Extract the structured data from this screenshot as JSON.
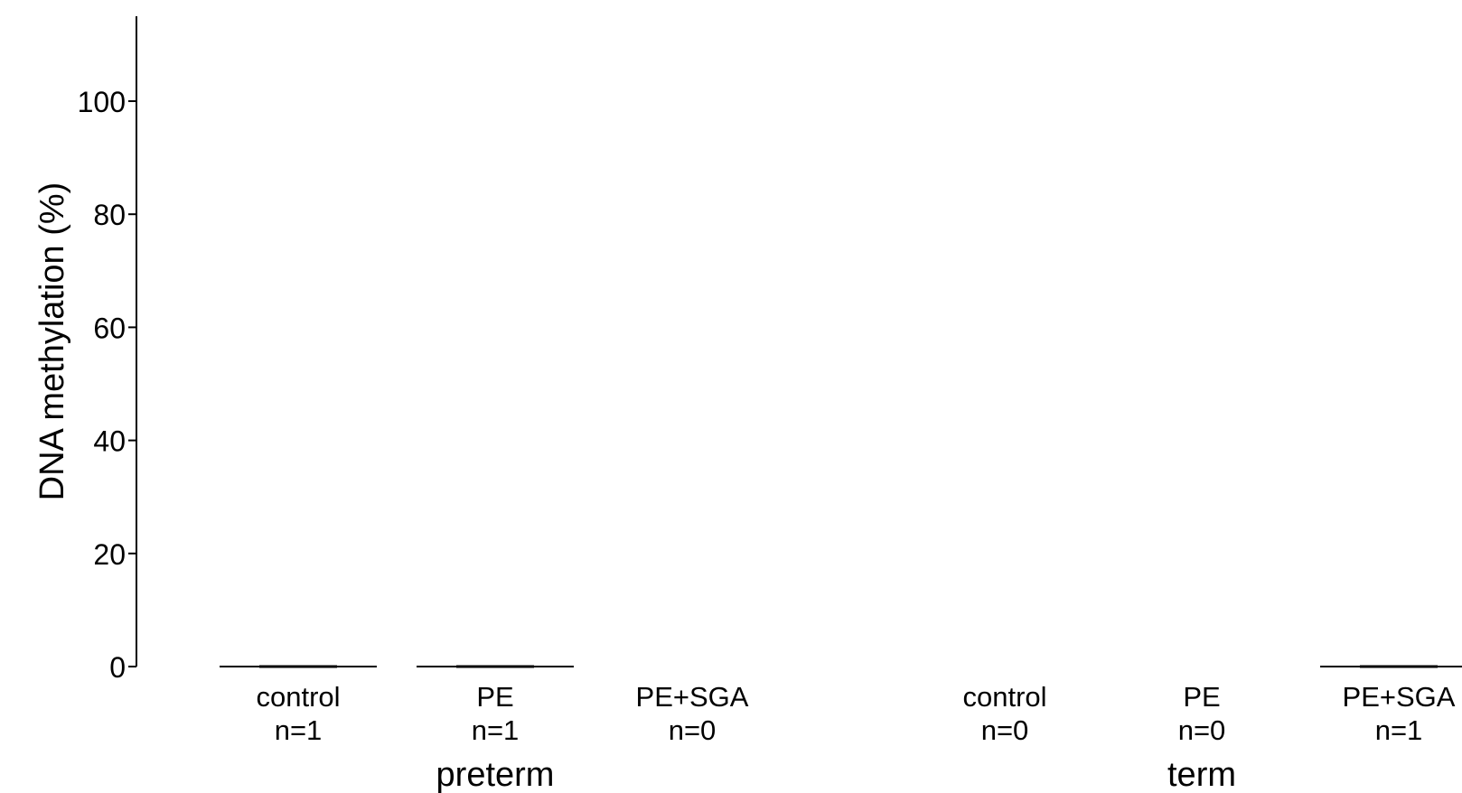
{
  "chart_data": {
    "type": "bar",
    "ylabel": "DNA methylation (%)",
    "ylim": [
      0,
      115
    ],
    "yticks": [
      0,
      20,
      40,
      60,
      80,
      100
    ],
    "grid": false,
    "groups": [
      {
        "label": "preterm",
        "categories": [
          {
            "name": "control",
            "n_label": "n=1",
            "value": 0,
            "has_data": true
          },
          {
            "name": "PE",
            "n_label": "n=1",
            "value": 0,
            "has_data": true
          },
          {
            "name": "PE+SGA",
            "n_label": "n=0",
            "value": null,
            "has_data": false
          }
        ]
      },
      {
        "label": "term",
        "categories": [
          {
            "name": "control",
            "n_label": "n=0",
            "value": null,
            "has_data": false
          },
          {
            "name": "PE",
            "n_label": "n=0",
            "value": null,
            "has_data": false
          },
          {
            "name": "PE+SGA",
            "n_label": "n=1",
            "value": 0,
            "has_data": true
          }
        ]
      }
    ],
    "colors": {
      "axis": "#000000",
      "mark": "#000000"
    }
  }
}
